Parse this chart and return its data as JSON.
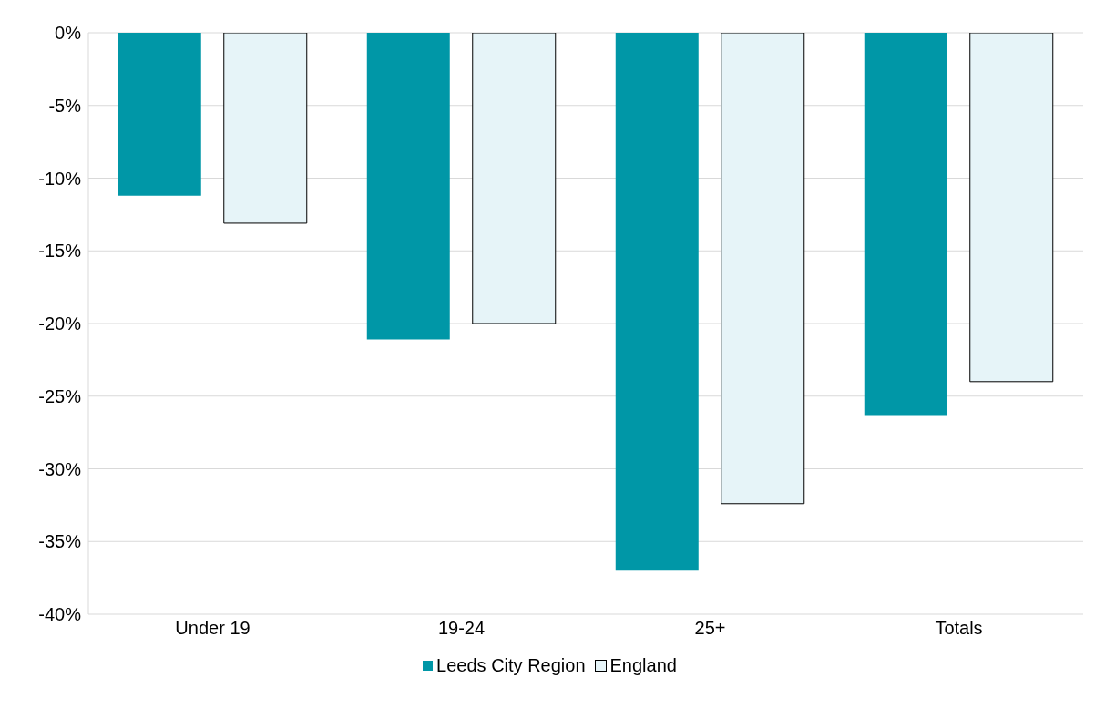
{
  "chart_data": {
    "type": "bar",
    "categories": [
      "Under 19",
      "19-24",
      "25+",
      "Totals"
    ],
    "series": [
      {
        "name": "Leeds City Region",
        "color": "#0097a7",
        "values": [
          -11.2,
          -21.1,
          -37.0,
          -26.3
        ]
      },
      {
        "name": "England",
        "color": "#e6f4f8",
        "values": [
          -13.1,
          -20.0,
          -32.4,
          -24.0
        ]
      }
    ],
    "ylim": [
      -40,
      0
    ],
    "yticks": [
      {
        "value": 0,
        "label": "0%"
      },
      {
        "value": -5,
        "label": "-5%"
      },
      {
        "value": -10,
        "label": "-10%"
      },
      {
        "value": -15,
        "label": "-15%"
      },
      {
        "value": -20,
        "label": "-20%"
      },
      {
        "value": -25,
        "label": "-25%"
      },
      {
        "value": -30,
        "label": "-30%"
      },
      {
        "value": -35,
        "label": "-35%"
      },
      {
        "value": -40,
        "label": "-40%"
      }
    ],
    "grid": "y",
    "legend": "bottom"
  }
}
